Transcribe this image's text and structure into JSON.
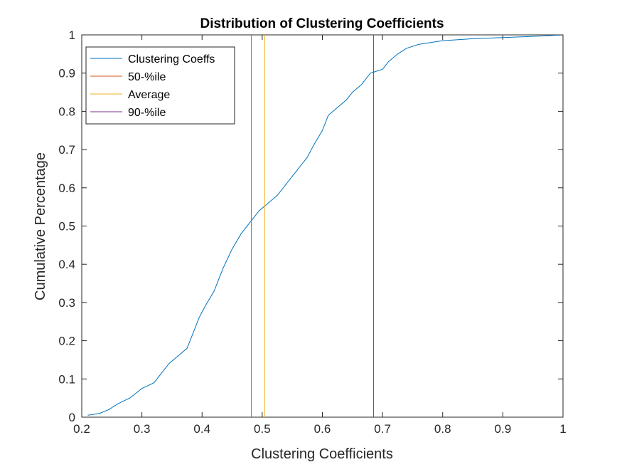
{
  "chart_data": {
    "type": "line",
    "title": "Distribution of Clustering Coefficients",
    "xlabel": "Clustering Coefficients",
    "ylabel": "Cumulative Percentage",
    "xlim": [
      0.2,
      1
    ],
    "ylim": [
      0,
      1
    ],
    "xticks": [
      "0.2",
      "0.3",
      "0.4",
      "0.5",
      "0.6",
      "0.7",
      "0.8",
      "0.9",
      "1"
    ],
    "yticks": [
      "0",
      "0.1",
      "0.2",
      "0.3",
      "0.4",
      "0.5",
      "0.6",
      "0.7",
      "0.8",
      "0.9",
      "1"
    ],
    "grid": false,
    "legend_position": "top-left",
    "series": [
      {
        "name": "Clustering Coeffs",
        "color": "#0072BD",
        "x": [
          0.21,
          0.23,
          0.245,
          0.26,
          0.28,
          0.3,
          0.32,
          0.335,
          0.345,
          0.36,
          0.375,
          0.385,
          0.395,
          0.405,
          0.42,
          0.435,
          0.45,
          0.465,
          0.48,
          0.495,
          0.51,
          0.525,
          0.54,
          0.555,
          0.565,
          0.575,
          0.585,
          0.6,
          0.61,
          0.625,
          0.64,
          0.65,
          0.665,
          0.68,
          0.69,
          0.7,
          0.71,
          0.725,
          0.74,
          0.76,
          0.8,
          0.85,
          0.9,
          0.95,
          1.0
        ],
        "y": [
          0.005,
          0.01,
          0.02,
          0.035,
          0.05,
          0.075,
          0.09,
          0.12,
          0.14,
          0.16,
          0.18,
          0.22,
          0.26,
          0.29,
          0.33,
          0.39,
          0.44,
          0.48,
          0.51,
          0.54,
          0.56,
          0.58,
          0.61,
          0.64,
          0.66,
          0.68,
          0.71,
          0.75,
          0.79,
          0.81,
          0.83,
          0.85,
          0.87,
          0.9,
          0.905,
          0.91,
          0.93,
          0.95,
          0.965,
          0.975,
          0.985,
          0.99,
          0.993,
          0.996,
          1.0
        ]
      },
      {
        "name": "50-%ile",
        "color": "#D95319",
        "x": [
          0.482,
          0.482
        ],
        "y": [
          0,
          1
        ]
      },
      {
        "name": "Average",
        "color": "#EDB120",
        "x": [
          0.504,
          0.504
        ],
        "y": [
          0,
          1
        ]
      },
      {
        "name": "90-%ile",
        "color": "#7E2F8E",
        "x": [
          0.685,
          0.685
        ],
        "y": [
          0,
          1
        ]
      }
    ]
  }
}
